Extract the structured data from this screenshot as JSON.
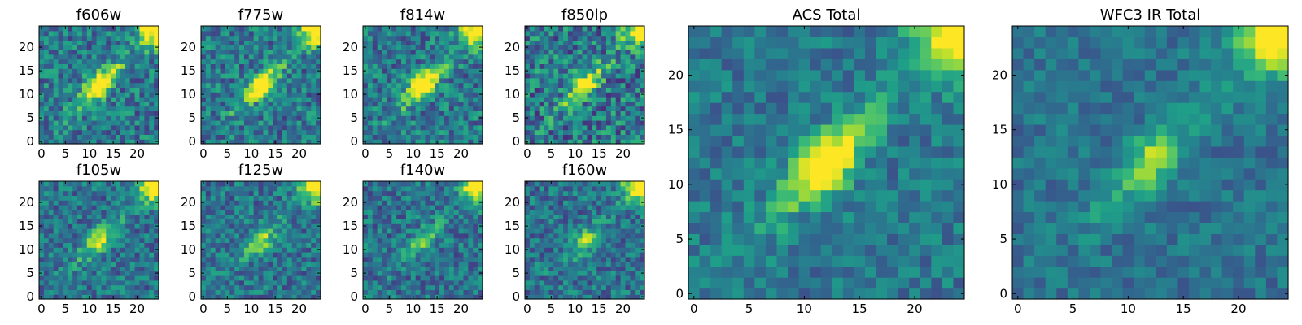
{
  "figure": {
    "colormap": "viridis",
    "background": "#ffffff",
    "frame_color": "#000000"
  },
  "chart_data": [
    {
      "type": "heatmap",
      "title": "f606w",
      "xlim": [
        0,
        24
      ],
      "ylim": [
        0,
        24
      ],
      "xticks": [
        0,
        5,
        10,
        15,
        20
      ],
      "yticks": [
        0,
        5,
        10,
        15,
        20
      ],
      "noise": 0.45,
      "peak": 0.95,
      "source": "acs"
    },
    {
      "type": "heatmap",
      "title": "f775w",
      "xlim": [
        0,
        24
      ],
      "ylim": [
        0,
        24
      ],
      "xticks": [
        0,
        5,
        10,
        15,
        20
      ],
      "yticks": [
        0,
        5,
        10,
        15,
        20
      ],
      "noise": 0.45,
      "peak": 0.8,
      "source": "acs"
    },
    {
      "type": "heatmap",
      "title": "f814w",
      "xlim": [
        0,
        24
      ],
      "ylim": [
        0,
        24
      ],
      "xticks": [
        0,
        5,
        10,
        15,
        20
      ],
      "yticks": [
        0,
        5,
        10,
        15,
        20
      ],
      "noise": 0.45,
      "peak": 0.85,
      "source": "acs"
    },
    {
      "type": "heatmap",
      "title": "f850lp",
      "xlim": [
        0,
        24
      ],
      "ylim": [
        0,
        24
      ],
      "xticks": [
        0,
        5,
        10,
        15,
        20
      ],
      "yticks": [
        0,
        5,
        10,
        15,
        20
      ],
      "noise": 0.55,
      "peak": 0.7,
      "source": "acs"
    },
    {
      "type": "heatmap",
      "title": "f105w",
      "xlim": [
        0,
        24
      ],
      "ylim": [
        0,
        24
      ],
      "xticks": [
        0,
        5,
        10,
        15,
        20
      ],
      "yticks": [
        0,
        5,
        10,
        15,
        20
      ],
      "noise": 0.4,
      "peak": 0.6,
      "source": "ir"
    },
    {
      "type": "heatmap",
      "title": "f125w",
      "xlim": [
        0,
        24
      ],
      "ylim": [
        0,
        24
      ],
      "xticks": [
        0,
        5,
        10,
        15,
        20
      ],
      "yticks": [
        0,
        5,
        10,
        15,
        20
      ],
      "noise": 0.4,
      "peak": 0.45,
      "source": "ir"
    },
    {
      "type": "heatmap",
      "title": "f140w",
      "xlim": [
        0,
        24
      ],
      "ylim": [
        0,
        24
      ],
      "xticks": [
        0,
        5,
        10,
        15,
        20
      ],
      "yticks": [
        0,
        5,
        10,
        15,
        20
      ],
      "noise": 0.4,
      "peak": 0.35,
      "source": "ir"
    },
    {
      "type": "heatmap",
      "title": "f160w",
      "xlim": [
        0,
        24
      ],
      "ylim": [
        0,
        24
      ],
      "xticks": [
        0,
        5,
        10,
        15,
        20
      ],
      "yticks": [
        0,
        5,
        10,
        15,
        20
      ],
      "noise": 0.4,
      "peak": 0.4,
      "source": "ir"
    },
    {
      "type": "heatmap",
      "title": "ACS Total",
      "xlim": [
        0,
        24
      ],
      "ylim": [
        0,
        24
      ],
      "xticks": [
        0,
        5,
        10,
        15,
        20
      ],
      "yticks": [
        0,
        5,
        10,
        15,
        20
      ],
      "noise": 0.3,
      "peak": 0.9,
      "source": "acs"
    },
    {
      "type": "heatmap",
      "title": "WFC3 IR Total",
      "xlim": [
        0,
        24
      ],
      "ylim": [
        0,
        24
      ],
      "xticks": [
        0,
        5,
        10,
        15,
        20
      ],
      "yticks": [
        0,
        5,
        10,
        15,
        20
      ],
      "noise": 0.25,
      "peak": 0.45,
      "source": "ir"
    }
  ]
}
